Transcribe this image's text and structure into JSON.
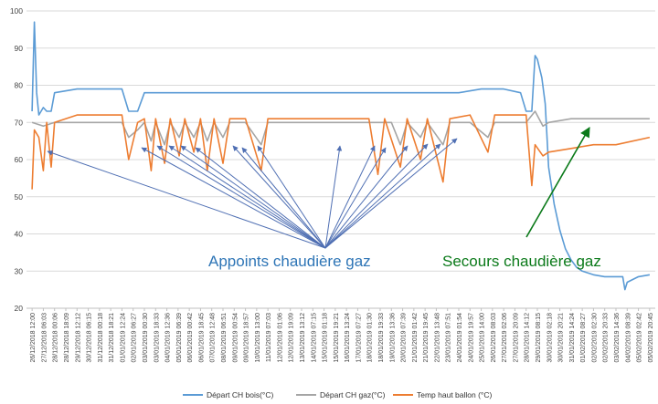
{
  "chart_data": {
    "type": "line",
    "title": "",
    "xlabel": "",
    "ylabel": "",
    "ylim": [
      20,
      100
    ],
    "yticks": [
      20,
      30,
      40,
      50,
      60,
      70,
      80,
      90,
      100
    ],
    "grid": true,
    "legend_position": "bottom",
    "x_tick_labels": [
      "26/12/2018 12:00",
      "27/12/2018 06:03",
      "28/12/2018 00:06",
      "28/12/2018 18:09",
      "29/12/2018 12:12",
      "30/12/2018 06:15",
      "31/12/2018 00:18",
      "31/12/2018 18:21",
      "01/01/2019 12:24",
      "02/01/2019 06:27",
      "03/01/2019 00:30",
      "03/01/2019 18:33",
      "04/01/2019 12:36",
      "05/01/2019 06:39",
      "06/01/2019 00:42",
      "06/01/2019 18:45",
      "07/01/2019 12:48",
      "08/01/2019 06:51",
      "09/01/2019 00:54",
      "09/01/2019 18:57",
      "10/01/2019 13:00",
      "11/01/2019 07:03",
      "12/01/2019 01:06",
      "12/01/2019 19:09",
      "13/01/2019 13:12",
      "14/01/2019 07:15",
      "15/01/2019 01:18",
      "15/01/2019 19:21",
      "16/01/2019 13:24",
      "17/01/2019 07:27",
      "18/01/2019 01:30",
      "18/01/2019 19:33",
      "19/01/2019 13:36",
      "20/01/2019 07:39",
      "21/01/2019 01:42",
      "21/01/2019 19:45",
      "22/01/2019 13:48",
      "23/01/2019 07:51",
      "24/01/2019 01:54",
      "24/01/2019 19:57",
      "25/01/2019 14:00",
      "26/01/2019 08:03",
      "27/01/2019 02:06",
      "27/01/2019 20:09",
      "28/01/2019 14:12",
      "29/01/2019 08:15",
      "30/01/2019 02:18",
      "30/01/2019 20:21",
      "31/01/2019 14:24",
      "01/02/2019 08:27",
      "02/02/2019 02:30",
      "02/02/2019 20:33",
      "03/02/2019 14:36",
      "04/02/2019 08:39",
      "05/02/2019 02:42",
      "05/02/2019 20:45"
    ],
    "series": [
      {
        "name": "Départ CH bois(°C)",
        "color": "#5b9bd5",
        "points": [
          [
            0,
            73
          ],
          [
            0.2,
            97
          ],
          [
            0.4,
            78
          ],
          [
            0.6,
            72
          ],
          [
            1,
            74
          ],
          [
            1.3,
            73
          ],
          [
            1.7,
            73
          ],
          [
            2,
            78
          ],
          [
            4,
            79
          ],
          [
            6,
            79
          ],
          [
            7.5,
            79
          ],
          [
            8,
            79
          ],
          [
            8.6,
            73
          ],
          [
            9.4,
            73
          ],
          [
            10,
            78
          ],
          [
            12,
            78
          ],
          [
            14,
            78
          ],
          [
            16,
            78
          ],
          [
            18,
            78
          ],
          [
            20,
            78
          ],
          [
            22,
            78
          ],
          [
            24,
            78
          ],
          [
            26,
            78
          ],
          [
            28,
            78
          ],
          [
            30,
            78
          ],
          [
            32,
            78
          ],
          [
            34,
            78
          ],
          [
            36,
            78
          ],
          [
            38,
            78
          ],
          [
            40,
            79
          ],
          [
            42,
            79
          ],
          [
            43.5,
            78
          ],
          [
            44,
            73
          ],
          [
            44.5,
            73
          ],
          [
            44.8,
            88
          ],
          [
            45,
            87
          ],
          [
            45.4,
            82
          ],
          [
            45.7,
            75
          ],
          [
            46,
            58
          ],
          [
            46.5,
            48
          ],
          [
            47,
            41
          ],
          [
            47.5,
            36
          ],
          [
            48,
            33
          ],
          [
            48.5,
            31
          ],
          [
            49,
            30
          ],
          [
            50,
            29
          ],
          [
            51,
            28.5
          ],
          [
            52,
            28.5
          ],
          [
            52.6,
            28.5
          ],
          [
            52.8,
            25
          ],
          [
            53,
            27
          ],
          [
            54,
            28.5
          ],
          [
            55,
            29
          ]
        ]
      },
      {
        "name": "Départ CH gaz(°C)",
        "color": "#a5a5a5",
        "points": [
          [
            0,
            70
          ],
          [
            1,
            69
          ],
          [
            2,
            70
          ],
          [
            4,
            70
          ],
          [
            6,
            70
          ],
          [
            8,
            70
          ],
          [
            8.6,
            66
          ],
          [
            9.4,
            68
          ],
          [
            10,
            70
          ],
          [
            10.6,
            65
          ],
          [
            11,
            70
          ],
          [
            11.8,
            64
          ],
          [
            12.3,
            70
          ],
          [
            13.1,
            66
          ],
          [
            13.6,
            70
          ],
          [
            14.4,
            66
          ],
          [
            15,
            70
          ],
          [
            15.6,
            65
          ],
          [
            16.2,
            70
          ],
          [
            17,
            66
          ],
          [
            17.6,
            70
          ],
          [
            19,
            70
          ],
          [
            20.4,
            64
          ],
          [
            21,
            70
          ],
          [
            22,
            70
          ],
          [
            24,
            70
          ],
          [
            26,
            70
          ],
          [
            28,
            70
          ],
          [
            30,
            70
          ],
          [
            32,
            70
          ],
          [
            32.8,
            64
          ],
          [
            33.4,
            70
          ],
          [
            34.6,
            66
          ],
          [
            35.2,
            70
          ],
          [
            36.6,
            64
          ],
          [
            37.2,
            70
          ],
          [
            39,
            70
          ],
          [
            40.6,
            66
          ],
          [
            41.2,
            70
          ],
          [
            43,
            70
          ],
          [
            44,
            70
          ],
          [
            44.8,
            73
          ],
          [
            45.5,
            69
          ],
          [
            46,
            70
          ],
          [
            48,
            71
          ],
          [
            50,
            71
          ],
          [
            52,
            71
          ],
          [
            55,
            71
          ]
        ]
      },
      {
        "name": "Temp haut ballon (°C)",
        "color": "#ed7d31",
        "points": [
          [
            0,
            52
          ],
          [
            0.2,
            68
          ],
          [
            0.6,
            66
          ],
          [
            1,
            57
          ],
          [
            1.3,
            70
          ],
          [
            1.7,
            58
          ],
          [
            2,
            70
          ],
          [
            4,
            72
          ],
          [
            6,
            72
          ],
          [
            7.5,
            72
          ],
          [
            8,
            72
          ],
          [
            8.6,
            60
          ],
          [
            9.4,
            70
          ],
          [
            10,
            71
          ],
          [
            10.6,
            57
          ],
          [
            11,
            71
          ],
          [
            11.8,
            59
          ],
          [
            12.3,
            71
          ],
          [
            13.1,
            61
          ],
          [
            13.6,
            71
          ],
          [
            14.4,
            62
          ],
          [
            15,
            71
          ],
          [
            15.6,
            57
          ],
          [
            16.2,
            71
          ],
          [
            17,
            59
          ],
          [
            17.6,
            71
          ],
          [
            19,
            71
          ],
          [
            20.4,
            57
          ],
          [
            21,
            71
          ],
          [
            22,
            71
          ],
          [
            24,
            71
          ],
          [
            26,
            71
          ],
          [
            28,
            71
          ],
          [
            30,
            71
          ],
          [
            30.8,
            56
          ],
          [
            31.4,
            71
          ],
          [
            32.8,
            58
          ],
          [
            33.4,
            71
          ],
          [
            34.6,
            60
          ],
          [
            35.2,
            71
          ],
          [
            36.6,
            54
          ],
          [
            37.2,
            71
          ],
          [
            39,
            72
          ],
          [
            40.6,
            62
          ],
          [
            41.2,
            72
          ],
          [
            43,
            72
          ],
          [
            44,
            72
          ],
          [
            44.5,
            53
          ],
          [
            44.8,
            64
          ],
          [
            45.5,
            61
          ],
          [
            46,
            62
          ],
          [
            48,
            63
          ],
          [
            50,
            64
          ],
          [
            52,
            64
          ],
          [
            55,
            66
          ]
        ]
      }
    ],
    "annotations": [
      {
        "text": "Appoints chaudière gaz",
        "color": "#2e75b6"
      },
      {
        "text": "Secours chaudière gaz",
        "color": "#0b7a1a"
      }
    ]
  }
}
